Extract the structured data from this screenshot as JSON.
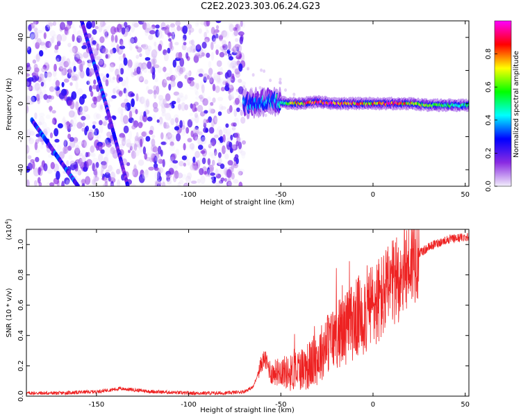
{
  "title": "C2E2.2023.303.06.24.G23",
  "chart_data": [
    {
      "type": "heatmap",
      "xlabel": "Height of straight line (km)",
      "ylabel": "Frequency (Hz)",
      "xlim": [
        -188,
        52
      ],
      "ylim": [
        -50,
        50
      ],
      "xticks": [
        -150,
        -100,
        -50,
        0,
        50
      ],
      "yticks": [
        -40,
        -20,
        0,
        20,
        40
      ],
      "colorbar": {
        "label": "Normalized spectral amplitude",
        "range": [
          0,
          1
        ],
        "ticks": [
          0.0,
          0.2,
          0.4,
          0.6,
          0.8
        ],
        "colors": [
          "#f2eefb",
          "#8a2be2",
          "#0000ff",
          "#00ffff",
          "#00ff00",
          "#ffff00",
          "#ff0000",
          "#ff00ff"
        ]
      },
      "features": {
        "noise_region_x": [
          -188,
          -70
        ],
        "signal_band": {
          "x": [
            -70,
            52
          ],
          "frequency": 0,
          "points": [
            {
              "x": -65,
              "y": 0,
              "amp": 0.35
            },
            {
              "x": -57,
              "y": 2,
              "amp": 0.4
            },
            {
              "x": -50,
              "y": 1,
              "amp": 0.45
            },
            {
              "x": -45,
              "y": 0,
              "amp": 0.6
            },
            {
              "x": -40,
              "y": 0,
              "amp": 0.75
            },
            {
              "x": -30,
              "y": 1,
              "amp": 0.95
            },
            {
              "x": -20,
              "y": 0,
              "amp": 0.9
            },
            {
              "x": -10,
              "y": 0,
              "amp": 0.8
            },
            {
              "x": 0,
              "y": 0,
              "amp": 0.75
            },
            {
              "x": 10,
              "y": 0,
              "amp": 0.85
            },
            {
              "x": 20,
              "y": 0,
              "amp": 0.7
            },
            {
              "x": 30,
              "y": -1,
              "amp": 0.6
            },
            {
              "x": 40,
              "y": -1,
              "amp": 0.55
            },
            {
              "x": 50,
              "y": -1,
              "amp": 0.5
            }
          ]
        },
        "diagonal_streaks": [
          {
            "from": [
              -158,
              50
            ],
            "to": [
              -145,
              0
            ],
            "amp": 0.25
          },
          {
            "from": [
              -145,
              0
            ],
            "to": [
              -133,
              -50
            ],
            "amp": 0.2
          },
          {
            "from": [
              -185,
              -10
            ],
            "to": [
              -160,
              -50
            ],
            "amp": 0.25
          }
        ]
      }
    },
    {
      "type": "line",
      "xlabel": "Height of straight line (km)",
      "ylabel": "SNR (10 * v/v)",
      "yscale_label": "(x10",
      "yscale_exp": "4",
      "yscale_close": ")",
      "xlim": [
        -188,
        52
      ],
      "ylim": [
        0,
        1.1
      ],
      "xticks": [
        -150,
        -100,
        -50,
        0,
        50
      ],
      "yticks": [
        0.0,
        0.2,
        0.4,
        0.6,
        0.8,
        1.0
      ],
      "color": "#ee2222",
      "x": [
        -188,
        -170,
        -150,
        -137,
        -120,
        -100,
        -80,
        -70,
        -65,
        -61,
        -59,
        -55,
        -50,
        -45,
        -40,
        -35,
        -30,
        -25,
        -20,
        -15,
        -10,
        -5,
        0,
        5,
        10,
        15,
        20,
        25,
        30,
        35,
        40,
        45,
        50,
        52
      ],
      "y": [
        0.02,
        0.02,
        0.03,
        0.05,
        0.03,
        0.02,
        0.02,
        0.03,
        0.06,
        0.2,
        0.25,
        0.15,
        0.17,
        0.15,
        0.18,
        0.2,
        0.25,
        0.35,
        0.4,
        0.45,
        0.5,
        0.55,
        0.6,
        0.65,
        0.72,
        0.8,
        0.88,
        0.94,
        0.98,
        1.01,
        1.03,
        1.04,
        1.05,
        1.05
      ]
    }
  ],
  "icons": {
    "colorbar": "rainbow-colorbar"
  }
}
